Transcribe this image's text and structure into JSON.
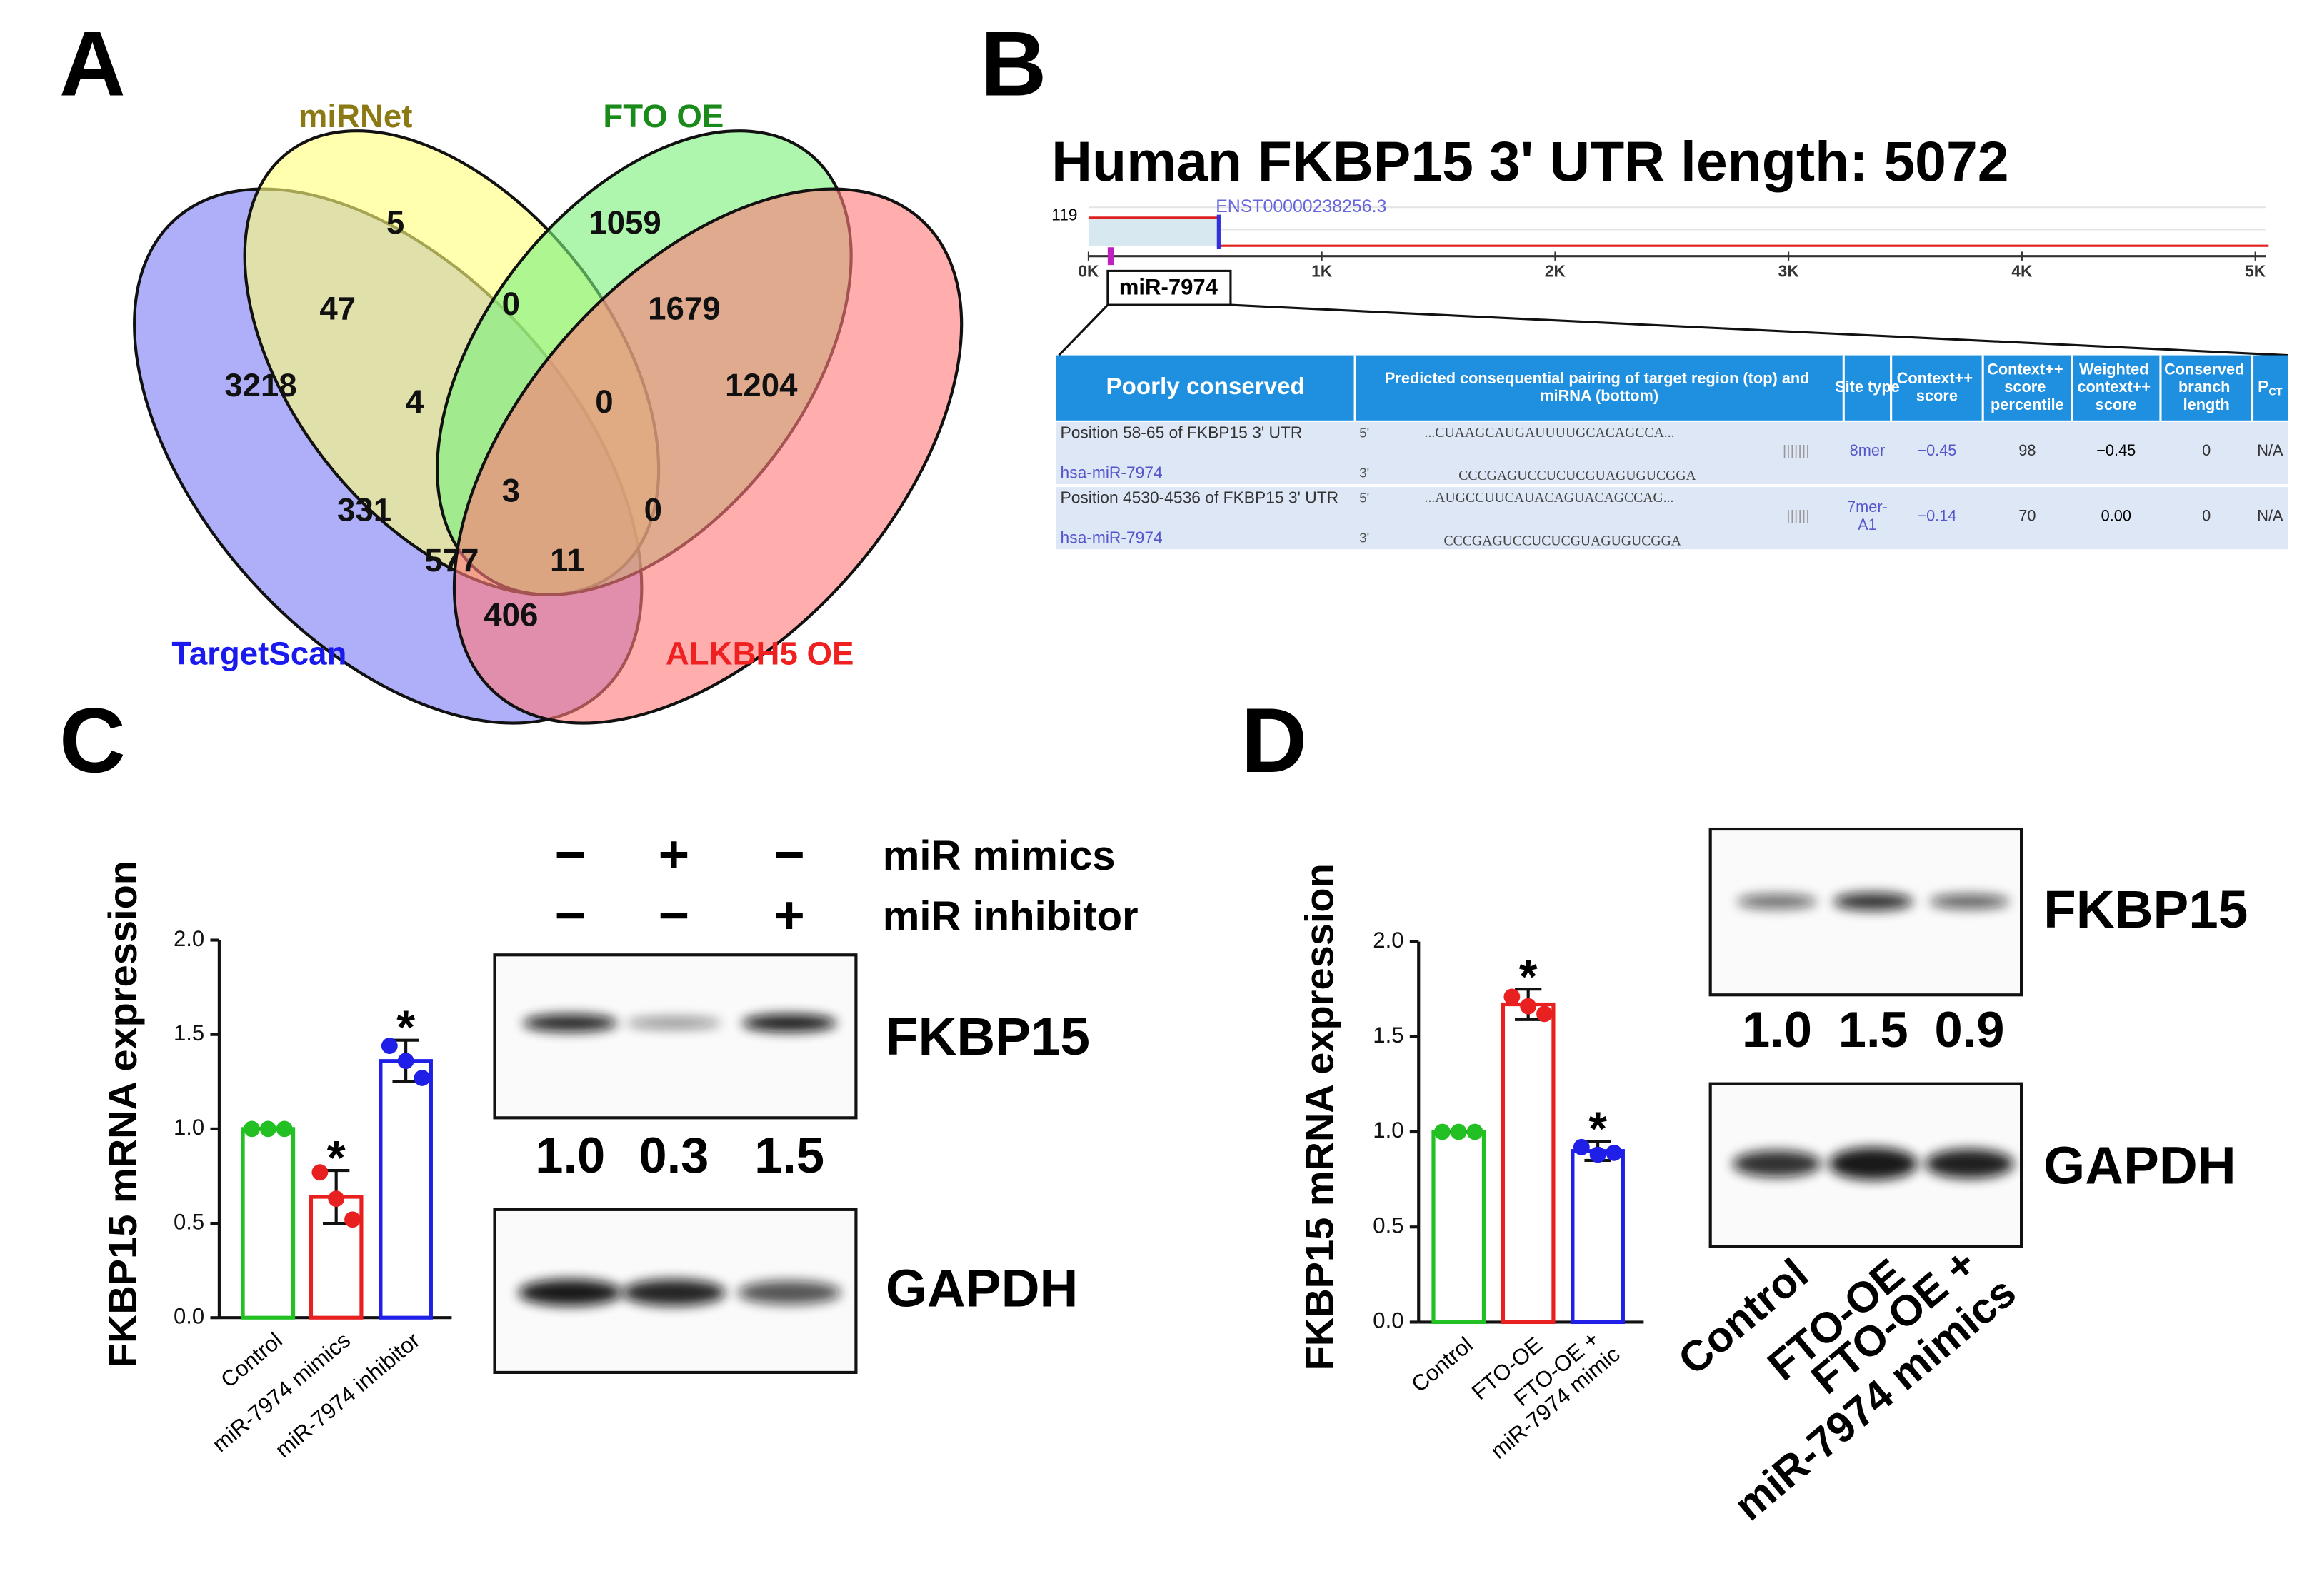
{
  "panel_labels": [
    "A",
    "B",
    "C",
    "D"
  ],
  "venn": {
    "sets": [
      {
        "name": "TargetScan",
        "color": "#7d7df5",
        "label_color": "#1a1aee"
      },
      {
        "name": "miRNet",
        "color": "#ffff7a",
        "label_color": "#8b7a14"
      },
      {
        "name": "FTO OE",
        "color": "#7cf07c",
        "label_color": "#1a8a1a"
      },
      {
        "name": "ALKBH5 OE",
        "color": "#ff7a7a",
        "label_color": "#ee2020"
      }
    ],
    "regions": [
      5,
      1059,
      3218,
      47,
      0,
      1679,
      1204,
      4,
      0,
      331,
      3,
      0,
      577,
      11,
      406
    ]
  },
  "utr": {
    "title": "Human FKBP15  3' UTR length: 5072",
    "y_label": "119",
    "transcript": "ENST00000238256.3",
    "axis": [
      "0K",
      "1K",
      "2K",
      "3K",
      "4K",
      "5K"
    ],
    "site": "miR-7974",
    "table": {
      "header": [
        "Poorly conserved",
        "Predicted consequential pairing of target region (top) and miRNA (bottom)",
        "Site type",
        "Context++ score",
        "Context++ score percentile",
        "Weighted context++ score",
        "Conserved branch length"
      ],
      "pct_header": {
        "main": "P",
        "sub": "CT"
      },
      "rows": [
        {
          "position": "Position 58-65 of FKBP15 3' UTR",
          "mirna": "hsa-miR-7974",
          "end5": "5'",
          "target": "...CUAAGCAUGAUUUUGCACAGCCA...",
          "end3": "3'",
          "mirna_seq": "CCCGAGUCCUCUCGUAGUGUCGGA",
          "pairing": "|||||||",
          "site_type": "8mer",
          "context_score": "−0.45",
          "percentile": 98,
          "weighted": "−0.45",
          "branch": 0,
          "pct": "N/A"
        },
        {
          "position": "Position 4530-4536 of FKBP15 3' UTR",
          "mirna": "hsa-miR-7974",
          "end5": "5'",
          "target": "...AUGCCUUCAUACAGUACAGCCAG...",
          "end3": "3'",
          "mirna_seq": "CCCGAGUCCUCUCGUAGUGUCGGA",
          "pairing": "||||||",
          "site_type": "7mer-A1",
          "context_score": "−0.14",
          "percentile": 70,
          "weighted": "0.00",
          "branch": 0,
          "pct": "N/A"
        }
      ]
    }
  },
  "chart_data": [
    {
      "type": "bar",
      "y_label": "FKBP15 mRNA expression",
      "categories": [
        "Control",
        "miR-7974 mimics",
        "miR-7974 inhibitor"
      ],
      "values": [
        1.0,
        0.64,
        1.36
      ],
      "errors": [
        0,
        0.14,
        0.11
      ],
      "points": [
        [
          1.0,
          1.0,
          1.0
        ],
        [
          0.77,
          0.63,
          0.52
        ],
        [
          1.44,
          1.36,
          1.27
        ]
      ],
      "colors": [
        "#22c022",
        "#e82020",
        "#1f1fe8"
      ],
      "ylim": [
        0,
        2
      ],
      "yticks": [
        {
          "value": 0,
          "label": "0.0"
        },
        {
          "value": 0.5,
          "label": "0.5"
        },
        {
          "value": 1,
          "label": "1.0"
        },
        {
          "value": 1.5,
          "label": "1.5"
        },
        {
          "value": 2,
          "label": "2.0"
        }
      ],
      "annotations": [
        {
          "category": "miR-7974 mimics",
          "text": "*"
        },
        {
          "category": "miR-7974 inhibitor",
          "text": "*"
        }
      ]
    },
    {
      "type": "bar",
      "y_label": "FKBP15 mRNA expression",
      "categories": [
        "Control",
        "FTO-OE",
        "FTO-OE + miR-7974 mimic"
      ],
      "values": [
        1.0,
        1.67,
        0.9
      ],
      "errors": [
        0,
        0.08,
        0.05
      ],
      "points": [
        [
          1.0,
          1.0,
          1.0
        ],
        [
          1.71,
          1.66,
          1.62
        ],
        [
          0.92,
          0.88,
          0.89
        ]
      ],
      "colors": [
        "#22c022",
        "#e82020",
        "#1f1fe8"
      ],
      "ylim": [
        0,
        2
      ],
      "yticks": [
        {
          "value": 0,
          "label": "0.0"
        },
        {
          "value": 0.5,
          "label": "0.5"
        },
        {
          "value": 1,
          "label": "1.0"
        },
        {
          "value": 1.5,
          "label": "1.5"
        },
        {
          "value": 2,
          "label": "2.0"
        }
      ],
      "annotations": [
        {
          "category": "FTO-OE",
          "text": "*"
        },
        {
          "category": "FTO-OE + miR-7974 mimic",
          "text": "*"
        }
      ]
    }
  ],
  "blots": [
    {
      "conditions": [
        {
          "name": "miR mimics",
          "signs": [
            "−",
            "+",
            "−"
          ]
        },
        {
          "name": "miR inhibitor",
          "signs": [
            "−",
            "−",
            "+"
          ]
        }
      ],
      "target": "FKBP15",
      "quantification": [
        "1.0",
        "0.3",
        "1.5"
      ],
      "control": "GAPDH"
    },
    {
      "lanes": [
        "Control",
        "FTO-OE",
        "FTO-OE + miR-7974 mimics"
      ],
      "target": "FKBP15",
      "quantification": [
        "1.0",
        "1.5",
        "0.9"
      ],
      "control": "GAPDH"
    }
  ]
}
